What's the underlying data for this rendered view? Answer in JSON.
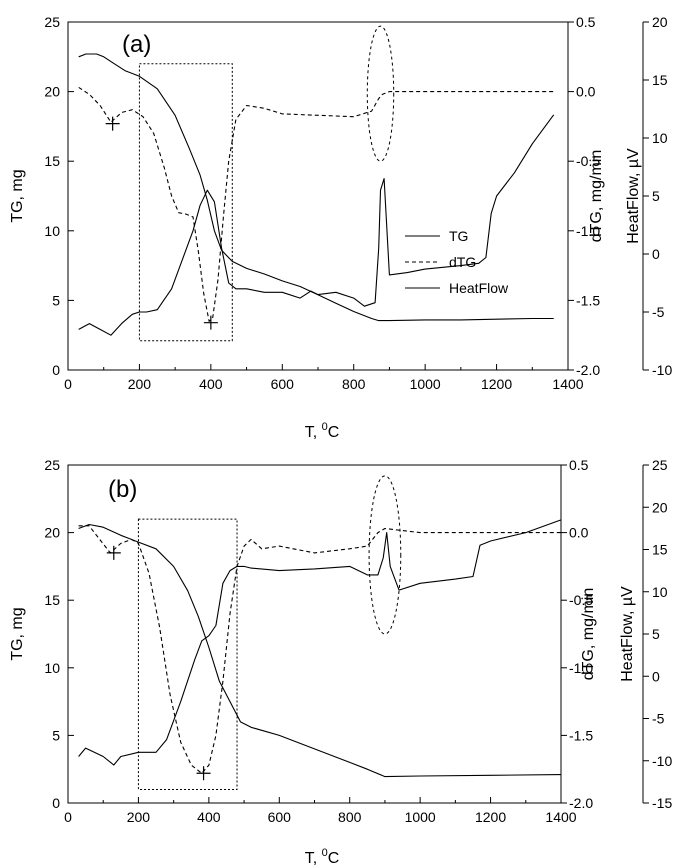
{
  "chart_data": [
    {
      "type": "line",
      "panel_label": "(a)",
      "xlabel_parts": [
        "T, ",
        "0",
        "C"
      ],
      "ylabel": "TG, mg",
      "y2label": "dTG, mg/min",
      "y3label": "HeatFlow, µV",
      "xlim": [
        0,
        1400
      ],
      "ylim": [
        0,
        25
      ],
      "y2lim": [
        -2.0,
        0.5
      ],
      "y3lim": [
        -10,
        20
      ],
      "x_ticks": [
        "0",
        "200",
        "400",
        "600",
        "800",
        "1000",
        "1200",
        "1400"
      ],
      "y_ticks": [
        "0",
        "5",
        "10",
        "15",
        "20",
        "25"
      ],
      "y2_ticks": [
        "-2.0",
        "-1.5",
        "-1.0",
        "-0.5",
        "0.0",
        "0.5"
      ],
      "y3_ticks": [
        "-10",
        "-5",
        "0",
        "5",
        "10",
        "15",
        "20"
      ],
      "legend": [
        "TG",
        "dTG",
        "HeatFlow"
      ],
      "series": [
        {
          "name": "TG",
          "axis": "TG, mg",
          "x": [
            30,
            50,
            80,
            100,
            130,
            160,
            200,
            250,
            300,
            340,
            370,
            390,
            410,
            430,
            460,
            500,
            550,
            600,
            650,
            700,
            750,
            800,
            850,
            870,
            900,
            1000,
            1100,
            1200,
            1300,
            1360
          ],
          "y": [
            22.5,
            22.7,
            22.7,
            22.5,
            22.0,
            21.5,
            21.1,
            20.2,
            18.3,
            15.9,
            14.0,
            12.2,
            10.0,
            8.6,
            7.8,
            7.3,
            6.9,
            6.4,
            6.0,
            5.4,
            4.8,
            4.2,
            3.7,
            3.55,
            3.55,
            3.6,
            3.6,
            3.65,
            3.7,
            3.7
          ]
        },
        {
          "name": "dTG",
          "axis": "dTG, mg/min",
          "x": [
            30,
            60,
            90,
            120,
            150,
            180,
            210,
            240,
            270,
            290,
            310,
            330,
            350,
            365,
            380,
            395,
            405,
            420,
            435,
            450,
            470,
            500,
            550,
            600,
            700,
            800,
            850,
            870,
            880,
            900,
            1000,
            1200,
            1360
          ],
          "y": [
            0.03,
            -0.02,
            -0.1,
            -0.22,
            -0.15,
            -0.13,
            -0.18,
            -0.3,
            -0.55,
            -0.75,
            -0.87,
            -0.88,
            -0.9,
            -1.15,
            -1.45,
            -1.65,
            -1.63,
            -1.35,
            -0.9,
            -0.5,
            -0.2,
            -0.1,
            -0.12,
            -0.16,
            -0.17,
            -0.18,
            -0.14,
            -0.05,
            -0.02,
            0.0,
            0.0,
            0.0,
            0.0
          ]
        },
        {
          "name": "HeatFlow",
          "axis": "HeatFlow, µV",
          "x": [
            30,
            60,
            90,
            120,
            150,
            180,
            200,
            220,
            250,
            290,
            320,
            350,
            370,
            390,
            410,
            430,
            450,
            470,
            500,
            550,
            600,
            650,
            680,
            700,
            750,
            800,
            830,
            860,
            870,
            875,
            885,
            900,
            950,
            1000,
            1100,
            1150,
            1170,
            1185,
            1200,
            1250,
            1300,
            1360
          ],
          "y": [
            -6.5,
            -6.0,
            -6.5,
            -7.0,
            -6.0,
            -5.2,
            -5.0,
            -5.0,
            -4.8,
            -3.0,
            -0.5,
            2.0,
            4.2,
            5.5,
            4.5,
            0.5,
            -2.5,
            -3.0,
            -3.0,
            -3.3,
            -3.3,
            -3.8,
            -3.2,
            -3.5,
            -3.3,
            -3.8,
            -4.5,
            -4.2,
            0.5,
            5.5,
            6.5,
            -1.8,
            -1.6,
            -1.3,
            -1.0,
            -0.8,
            -0.3,
            3.5,
            5.0,
            7.0,
            9.5,
            12.0
          ]
        }
      ],
      "markers": [
        {
          "series": "dTG",
          "x": 125,
          "y": -0.23
        },
        {
          "series": "dTG",
          "x": 400,
          "y": -1.66
        }
      ],
      "regions": [
        {
          "shape": "rectangle",
          "x": [
            200,
            460
          ],
          "y": [
            2.1,
            22.0
          ]
        },
        {
          "shape": "ellipse",
          "x": [
            838,
            912
          ],
          "y": [
            15.0,
            24.7
          ]
        }
      ]
    },
    {
      "type": "line",
      "panel_label": "(b)",
      "xlabel_parts": [
        "T, ",
        "0",
        "C"
      ],
      "ylabel": "TG, mg",
      "y2label": "dTG, mg/min",
      "y3label": "HeatFlow, µV",
      "xlim": [
        0,
        1400
      ],
      "ylim": [
        0,
        25
      ],
      "y2lim": [
        -2.0,
        0.5
      ],
      "y3lim": [
        -15,
        25
      ],
      "x_ticks": [
        "0",
        "200",
        "400",
        "600",
        "800",
        "1000",
        "1200",
        "1400"
      ],
      "y_ticks": [
        "0",
        "5",
        "10",
        "15",
        "20",
        "25"
      ],
      "y2_ticks": [
        "-2.0",
        "-1.5",
        "-1.0",
        "-0.5",
        "0.0",
        "0.5"
      ],
      "y3_ticks": [
        "-15",
        "-10",
        "-5",
        "0",
        "5",
        "10",
        "15",
        "20",
        "25"
      ],
      "series": [
        {
          "name": "TG",
          "axis": "TG, mg",
          "x": [
            30,
            60,
            100,
            150,
            200,
            250,
            300,
            340,
            370,
            400,
            430,
            460,
            490,
            520,
            560,
            600,
            700,
            800,
            850,
            900,
            1000,
            1200,
            1400
          ],
          "y": [
            20.3,
            20.6,
            20.4,
            19.8,
            19.3,
            18.8,
            17.5,
            15.7,
            13.8,
            11.5,
            9.0,
            7.5,
            6.0,
            5.6,
            5.3,
            5.0,
            4.0,
            3.0,
            2.5,
            1.95,
            2.0,
            2.05,
            2.1
          ],
          "note": "solid line falling through the boxed region"
        },
        {
          "name": "dTG",
          "axis": "dTG, mg/min",
          "x": [
            30,
            60,
            90,
            120,
            150,
            180,
            200,
            230,
            260,
            290,
            320,
            350,
            380,
            400,
            420,
            440,
            460,
            480,
            500,
            520,
            550,
            600,
            700,
            800,
            850,
            880,
            900,
            1000,
            1100,
            1200,
            1400
          ],
          "y": [
            0.05,
            0.05,
            -0.05,
            -0.15,
            -0.08,
            -0.05,
            -0.08,
            -0.3,
            -0.7,
            -1.2,
            -1.55,
            -1.72,
            -1.78,
            -1.72,
            -1.5,
            -1.1,
            -0.6,
            -0.25,
            -0.1,
            -0.05,
            -0.12,
            -0.1,
            -0.15,
            -0.12,
            -0.1,
            0.0,
            0.03,
            0.0,
            0.0,
            0.0,
            0.0
          ]
        },
        {
          "name": "HeatFlow",
          "axis": "HeatFlow, µV",
          "x": [
            30,
            50,
            100,
            130,
            150,
            200,
            250,
            280,
            320,
            360,
            380,
            400,
            420,
            440,
            460,
            480,
            500,
            520,
            600,
            700,
            800,
            850,
            880,
            895,
            905,
            915,
            940,
            1000,
            1100,
            1150,
            1170,
            1200,
            1300,
            1400
          ],
          "y": [
            -9.5,
            -8.5,
            -9.5,
            -10.5,
            -9.5,
            -9.0,
            -9.0,
            -7.5,
            -3.0,
            2.0,
            4.2,
            4.8,
            6.0,
            11.0,
            12.5,
            13.0,
            13.0,
            12.8,
            12.5,
            12.7,
            13.0,
            12.0,
            12.0,
            14.0,
            17.0,
            13.0,
            10.2,
            11.0,
            11.5,
            11.8,
            15.5,
            16.0,
            17.0,
            18.5
          ]
        }
      ],
      "markers": [
        {
          "series": "dTG",
          "x": 130,
          "y": -0.15
        },
        {
          "series": "dTG",
          "x": 385,
          "y": -1.78
        }
      ],
      "regions": [
        {
          "shape": "rectangle",
          "x": [
            200,
            480
          ],
          "y": [
            1.0,
            21.0
          ]
        },
        {
          "shape": "ellipse",
          "x": [
            855,
            945
          ],
          "y": [
            12.5,
            24.2
          ]
        }
      ]
    }
  ]
}
